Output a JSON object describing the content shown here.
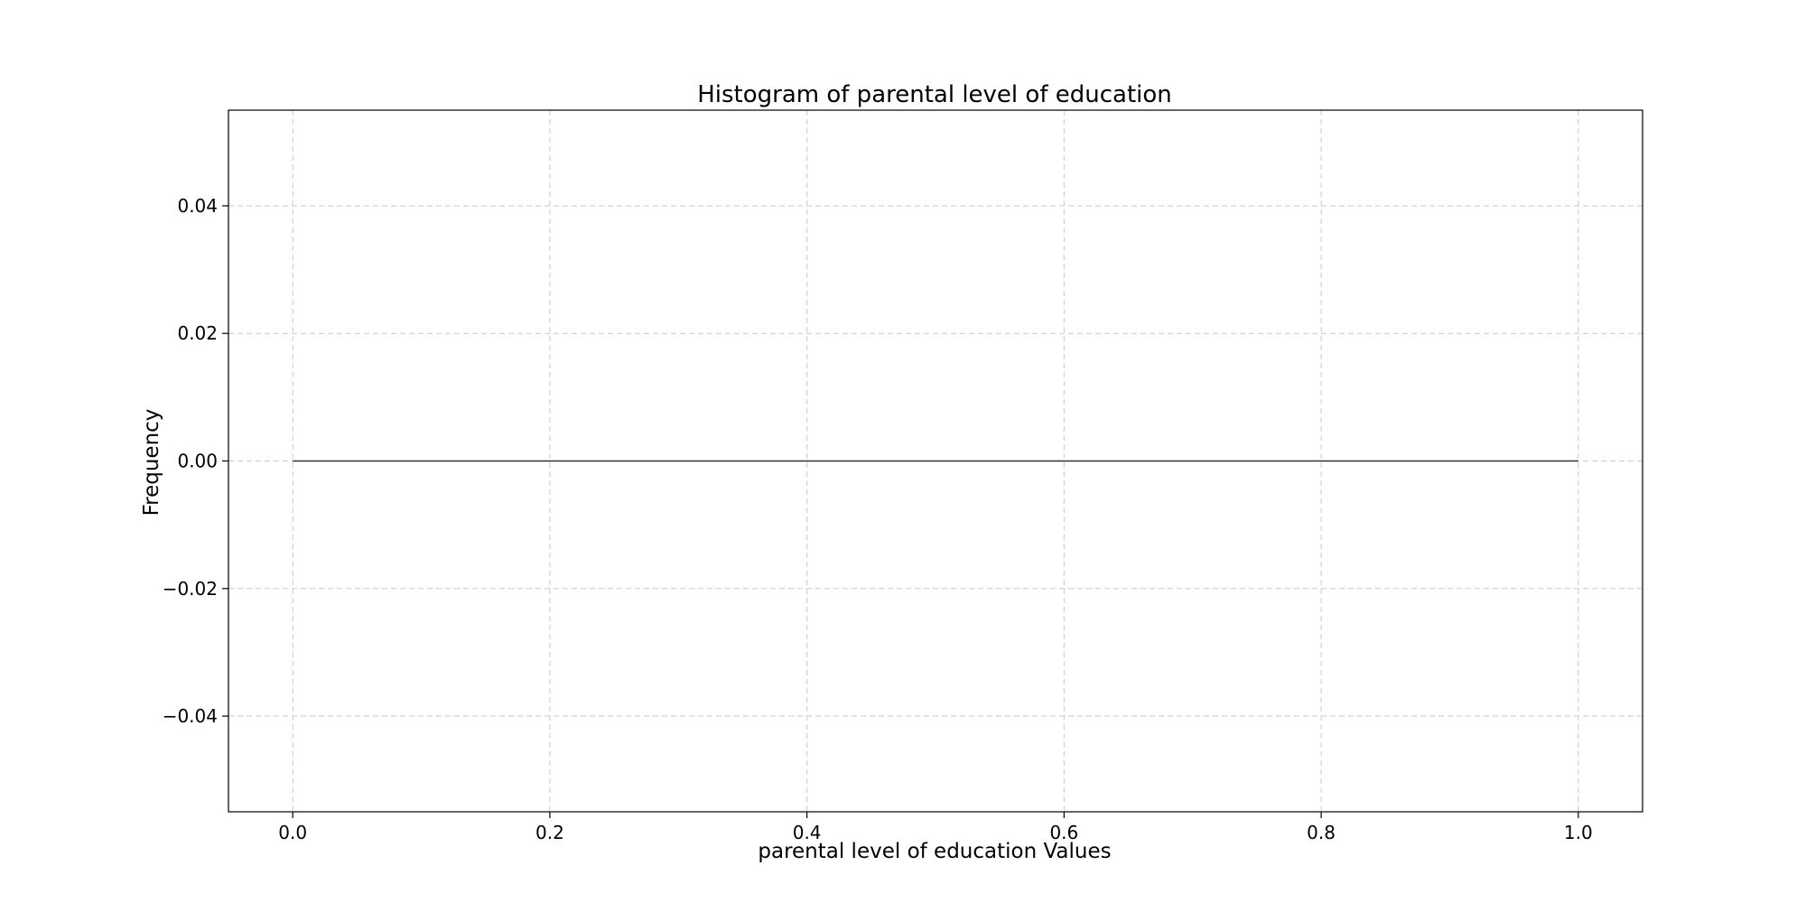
{
  "chart_data": {
    "type": "bar",
    "title": "Histogram of parental level of education",
    "xlabel": "parental level of education Values",
    "ylabel": "Frequency",
    "xlim": [
      -0.05,
      1.05
    ],
    "ylim": [
      -0.055,
      0.055
    ],
    "xticks": [
      0.0,
      0.2,
      0.4,
      0.6,
      0.8,
      1.0
    ],
    "xtick_labels": [
      "0.0",
      "0.2",
      "0.4",
      "0.6",
      "0.8",
      "1.0"
    ],
    "yticks": [
      -0.04,
      -0.02,
      0.0,
      0.02,
      0.04
    ],
    "ytick_labels": [
      "−0.04",
      "−0.02",
      "0.00",
      "0.02",
      "0.04"
    ],
    "grid": true,
    "bins": [
      {
        "x_start": 0.0,
        "x_end": 1.0,
        "value": 0
      }
    ],
    "colors": {
      "bar_edge": "#333333",
      "grid": "#c8c8c8",
      "axes": "#000000"
    }
  }
}
